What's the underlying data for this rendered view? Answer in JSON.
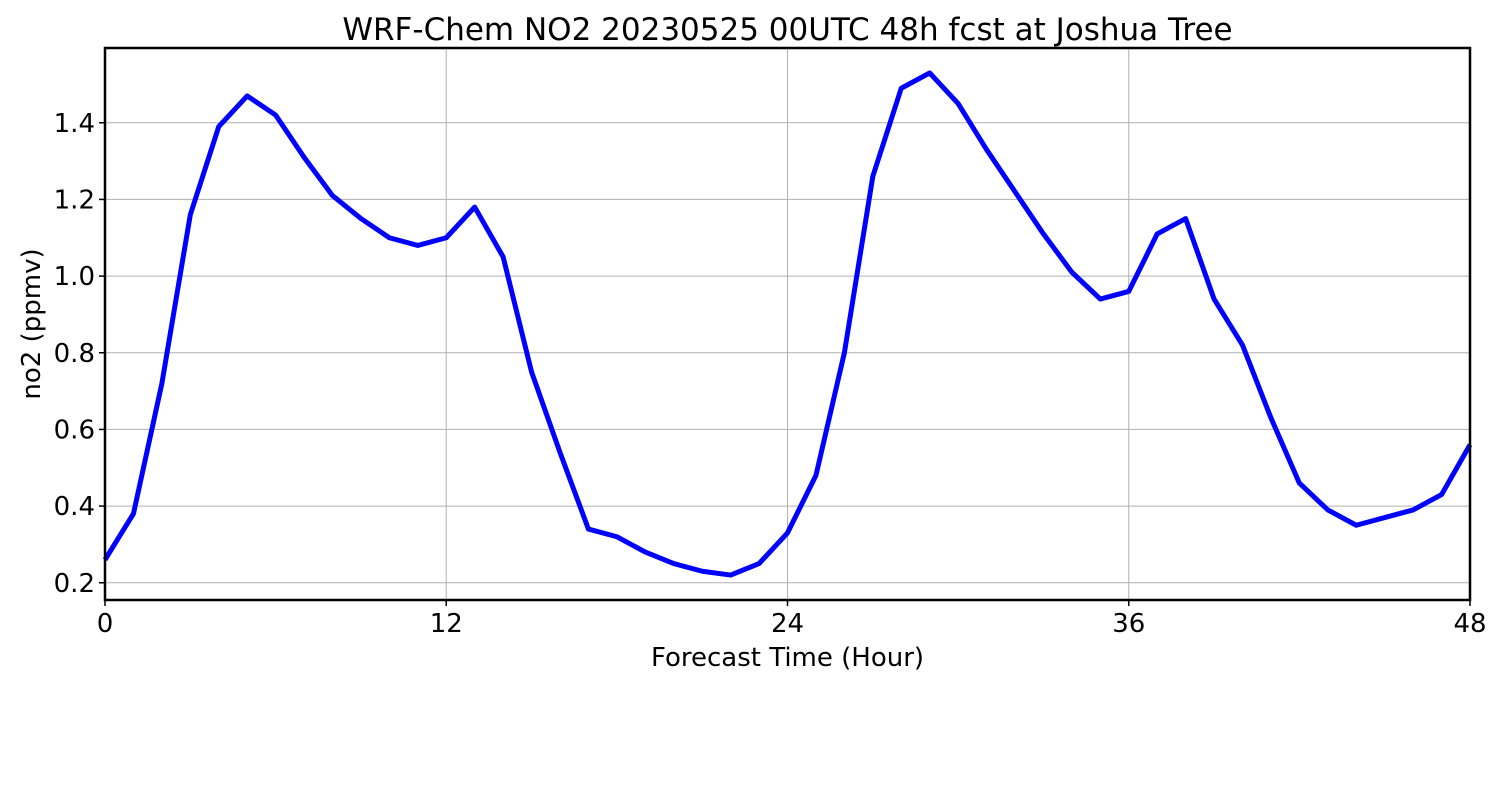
{
  "chart_data": {
    "type": "line",
    "title": "WRF-Chem NO2  20230525 00UTC 48h fcst at Joshua Tree",
    "xlabel": "Forecast Time (Hour)",
    "ylabel": "no2  (ppmv)",
    "xlim": [
      0,
      48
    ],
    "ylim": [
      0.155,
      1.595
    ],
    "xticks": [
      0,
      12,
      24,
      36,
      48
    ],
    "yticks": [
      0.2,
      0.4,
      0.6,
      0.8,
      1.0,
      1.2,
      1.4
    ],
    "ytick_labels": [
      "0.2",
      "0.4",
      "0.6",
      "0.8",
      "1.0",
      "1.2",
      "1.4"
    ],
    "grid": true,
    "line_color": "#0000ff",
    "x": [
      0,
      1,
      2,
      3,
      4,
      5,
      6,
      7,
      8,
      9,
      10,
      11,
      12,
      13,
      14,
      15,
      16,
      17,
      18,
      19,
      20,
      21,
      22,
      23,
      24,
      25,
      26,
      27,
      28,
      29,
      30,
      31,
      32,
      33,
      34,
      35,
      36,
      37,
      38,
      39,
      40,
      41,
      42,
      43,
      44,
      45,
      46,
      47,
      48
    ],
    "series": [
      {
        "values": [
          0.26,
          0.38,
          0.72,
          1.16,
          1.39,
          1.47,
          1.42,
          1.31,
          1.21,
          1.15,
          1.1,
          1.08,
          1.1,
          1.18,
          1.05,
          0.75,
          0.54,
          0.34,
          0.32,
          0.28,
          0.25,
          0.23,
          0.22,
          0.25,
          0.33,
          0.48,
          0.8,
          1.26,
          1.49,
          1.53,
          1.45,
          1.33,
          1.22,
          1.11,
          1.01,
          0.94,
          0.96,
          1.11,
          1.15,
          0.94,
          0.82,
          0.63,
          0.46,
          0.39,
          0.35,
          0.37,
          0.39,
          0.43,
          0.56
        ]
      }
    ]
  }
}
